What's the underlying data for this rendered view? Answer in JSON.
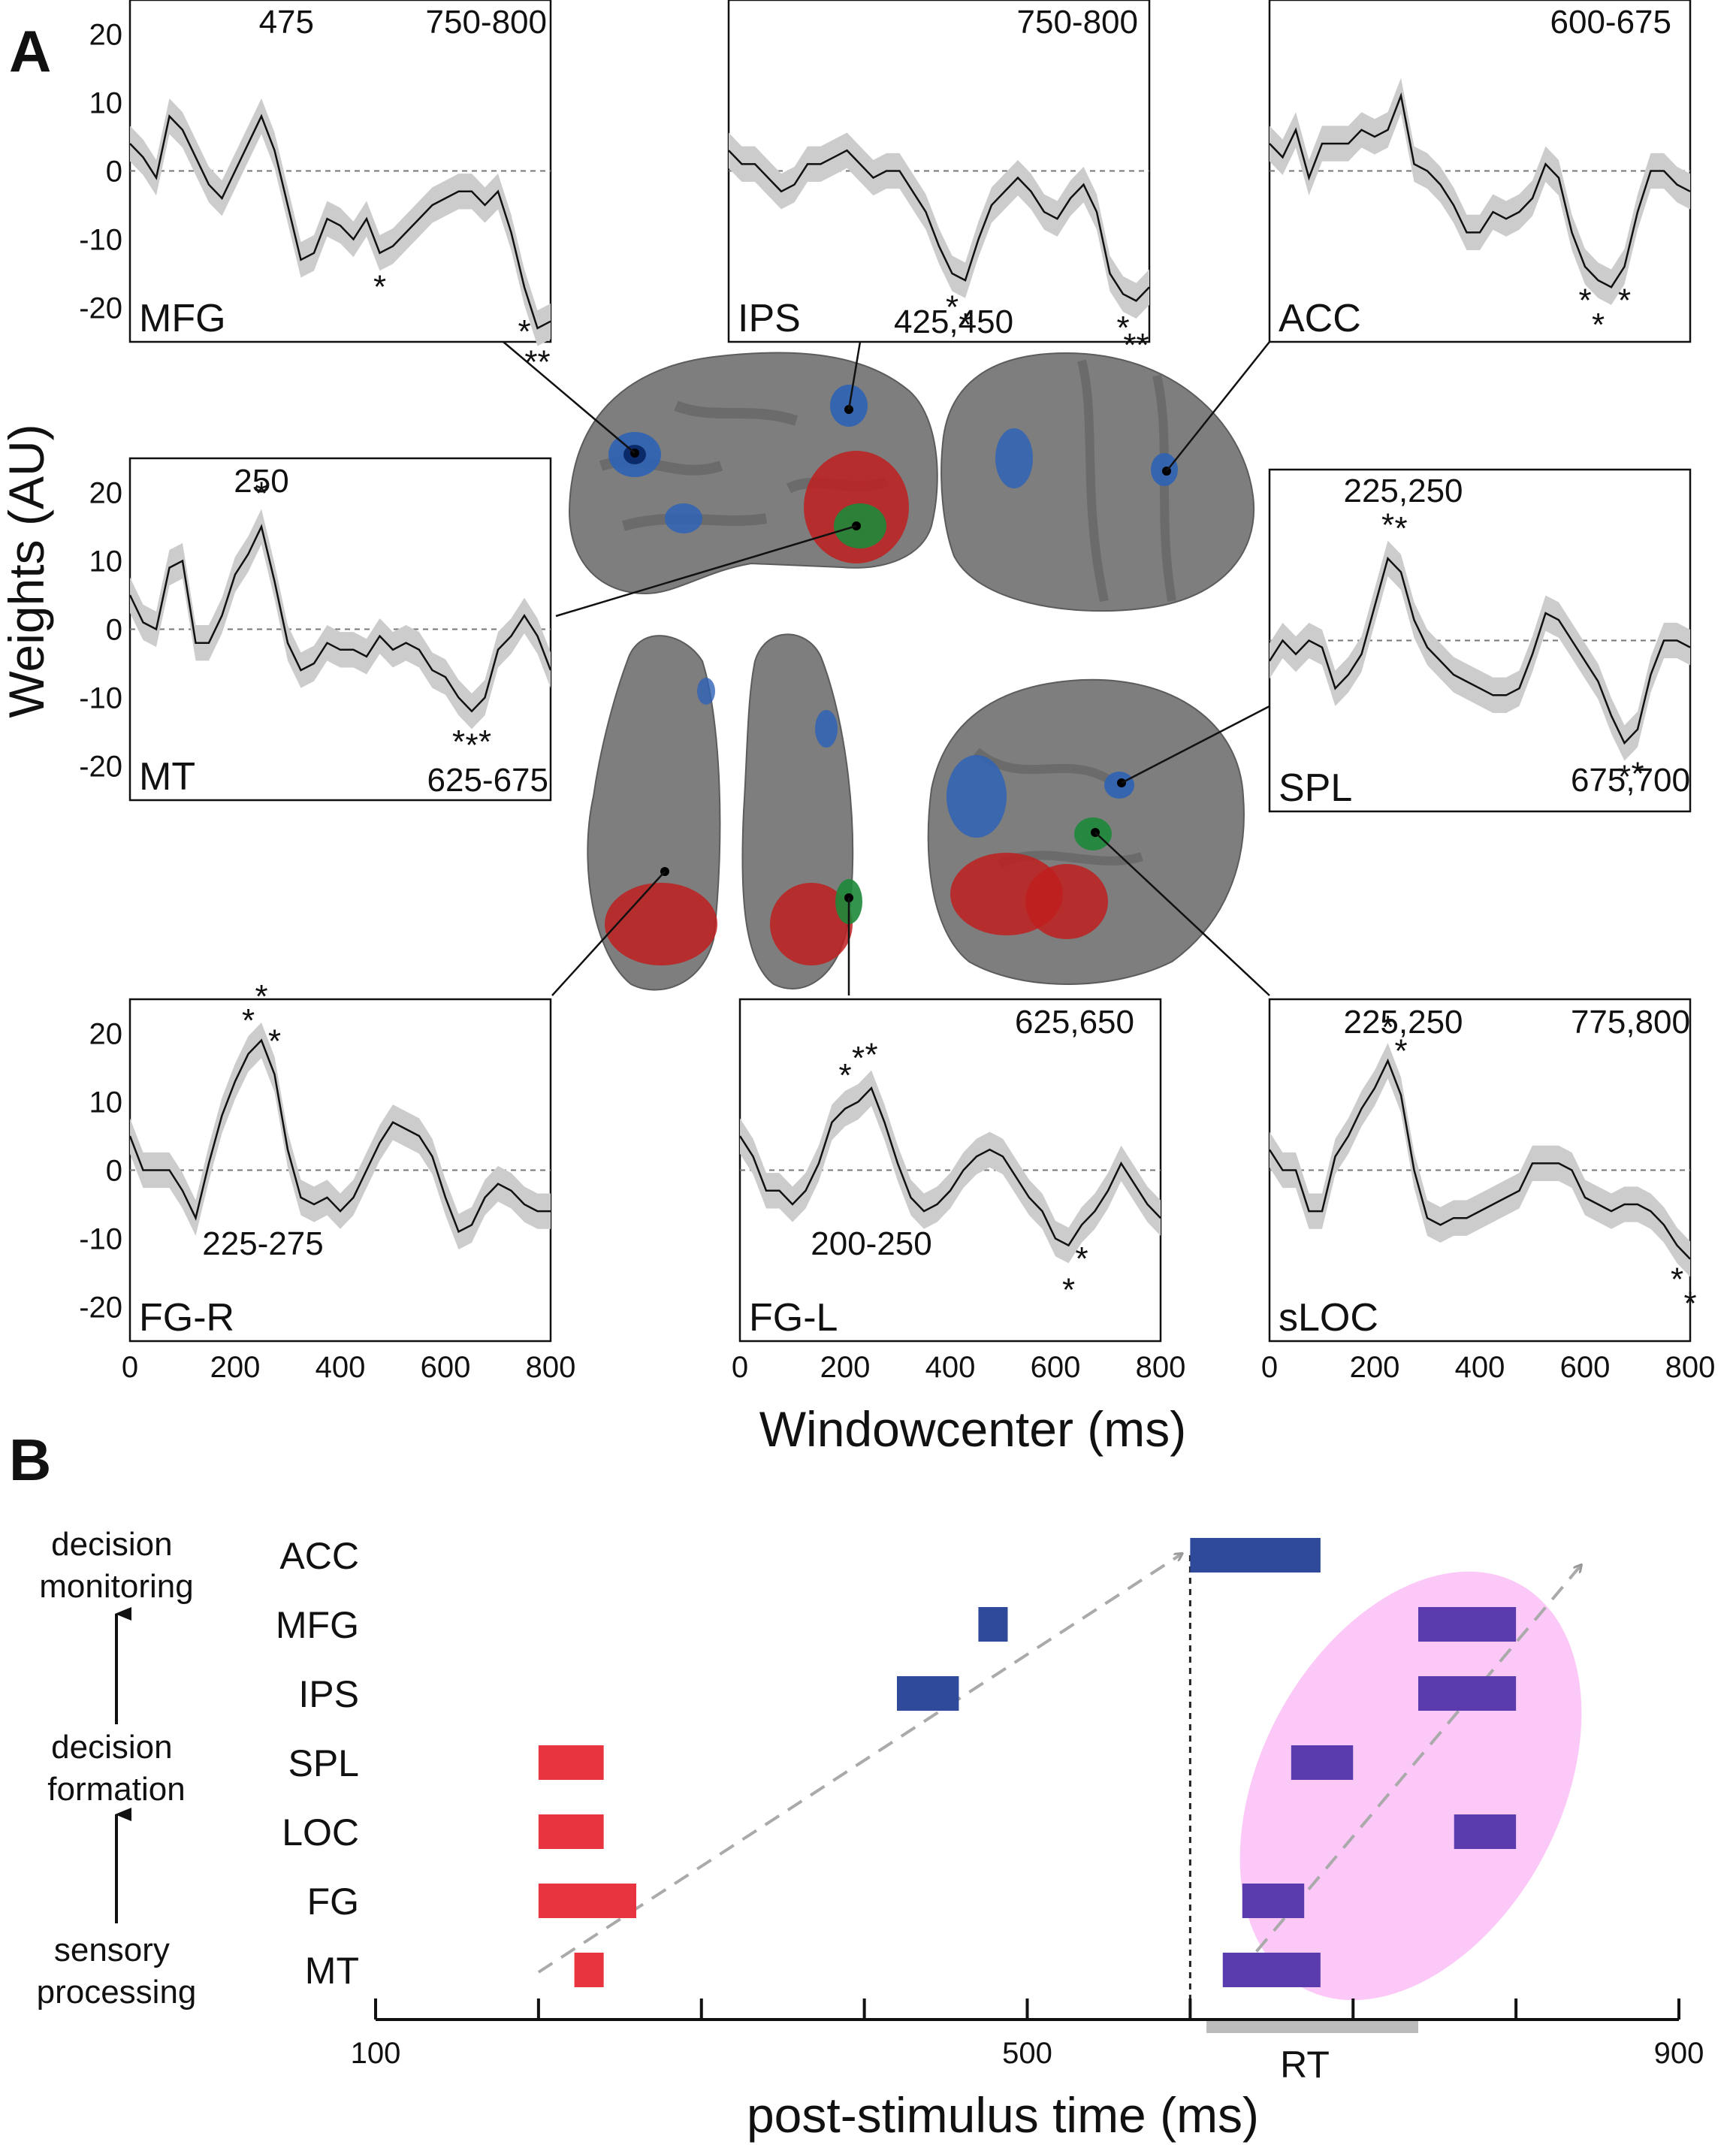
{
  "panel_a": {
    "letter": "A",
    "ylabel": "Weights (AU)",
    "xlabel": "Windowcenter (ms)",
    "x_ticks": [
      "0",
      "200",
      "400",
      "600",
      "800"
    ],
    "y_ticks": [
      "20",
      "10",
      "0",
      "-10",
      "-20"
    ]
  },
  "panel_b": {
    "letter": "B",
    "xlabel": "post-stimulus time (ms)",
    "x_ticks": [
      "100",
      "500",
      "900"
    ],
    "rt_label": "RT",
    "stage_labels": [
      "decision monitoring",
      "decision formation",
      "sensory processing"
    ]
  },
  "colors": {
    "early": "#e8343e",
    "decision_blue": "#2f4a9a",
    "late_purple": "#5a3cae",
    "ellipse": "#fbc8f7",
    "ribbon": "#cccccc",
    "rt_bar": "#bbbbbb",
    "arrow": "#aaaaaa"
  },
  "chart_data": [
    {
      "type": "line",
      "region": "MFG",
      "xlim": [
        0,
        800
      ],
      "ylim": [
        -25,
        25
      ],
      "annotations": [
        "475",
        "750-800"
      ],
      "x": [
        0,
        25,
        50,
        75,
        100,
        125,
        150,
        175,
        200,
        225,
        250,
        275,
        300,
        325,
        350,
        375,
        400,
        425,
        450,
        475,
        500,
        525,
        550,
        575,
        600,
        625,
        650,
        675,
        700,
        725,
        750,
        775,
        800
      ],
      "y": [
        4,
        2,
        -1,
        8,
        6,
        2,
        -2,
        -4,
        0,
        4,
        8,
        3,
        -5,
        -13,
        -12,
        -7,
        -8,
        -10,
        -7,
        -12,
        -11,
        -9,
        -7,
        -5,
        -4,
        -3,
        -3,
        -5,
        -3,
        -9,
        -17,
        -23,
        -22
      ],
      "stars": [
        {
          "x": 475,
          "text": "*"
        },
        {
          "x": 750,
          "text": "*"
        },
        {
          "x": 775,
          "text": "**"
        }
      ]
    },
    {
      "type": "line",
      "region": "IPS",
      "xlim": [
        0,
        800
      ],
      "ylim": [
        -25,
        25
      ],
      "annotations": [
        "750-800",
        "425,450"
      ],
      "x": [
        0,
        25,
        50,
        75,
        100,
        125,
        150,
        175,
        200,
        225,
        250,
        275,
        300,
        325,
        350,
        375,
        400,
        425,
        450,
        475,
        500,
        525,
        550,
        575,
        600,
        625,
        650,
        675,
        700,
        725,
        750,
        775,
        800
      ],
      "y": [
        3,
        1,
        1,
        -1,
        -3,
        -2,
        1,
        1,
        2,
        3,
        1,
        -1,
        0,
        0,
        -3,
        -6,
        -11,
        -15,
        -16,
        -10,
        -5,
        -3,
        -1,
        -3,
        -6,
        -7,
        -4,
        -2,
        -6,
        -15,
        -18,
        -19,
        -17
      ],
      "stars": [
        {
          "x": 425,
          "text": "*"
        },
        {
          "x": 450,
          "text": "*"
        },
        {
          "x": 750,
          "text": "*"
        },
        {
          "x": 775,
          "text": "**"
        }
      ]
    },
    {
      "type": "line",
      "region": "ACC",
      "xlim": [
        0,
        800
      ],
      "ylim": [
        -25,
        25
      ],
      "annotations": [
        "600-675"
      ],
      "x": [
        0,
        25,
        50,
        75,
        100,
        125,
        150,
        175,
        200,
        225,
        250,
        275,
        300,
        325,
        350,
        375,
        400,
        425,
        450,
        475,
        500,
        525,
        550,
        575,
        600,
        625,
        650,
        675,
        700,
        725,
        750,
        775,
        800
      ],
      "y": [
        4,
        2,
        6,
        -1,
        4,
        4,
        4,
        6,
        5,
        6,
        11,
        1,
        0,
        -2,
        -5,
        -9,
        -9,
        -6,
        -7,
        -6,
        -4,
        1,
        -1,
        -9,
        -14,
        -16,
        -17,
        -14,
        -6,
        0,
        0,
        -2,
        -3
      ],
      "stars": [
        {
          "x": 600,
          "text": "*"
        },
        {
          "x": 625,
          "text": "*"
        },
        {
          "x": 675,
          "text": "*"
        }
      ]
    },
    {
      "type": "line",
      "region": "MT",
      "xlim": [
        0,
        800
      ],
      "ylim": [
        -25,
        25
      ],
      "annotations": [
        "250",
        "625-675"
      ],
      "x": [
        0,
        25,
        50,
        75,
        100,
        125,
        150,
        175,
        200,
        225,
        250,
        275,
        300,
        325,
        350,
        375,
        400,
        425,
        450,
        475,
        500,
        525,
        550,
        575,
        600,
        625,
        650,
        675,
        700,
        725,
        750,
        775,
        800
      ],
      "y": [
        5,
        1,
        0,
        9,
        10,
        -2,
        -2,
        2,
        8,
        11,
        15,
        7,
        -2,
        -6,
        -5,
        -2,
        -3,
        -3,
        -4,
        -1,
        -3,
        -2,
        -3,
        -6,
        -7,
        -10,
        -12,
        -10,
        -3,
        -1,
        2,
        -1,
        -6
      ],
      "stars": [
        {
          "x": 250,
          "text": "*"
        },
        {
          "x": 625,
          "text": "*"
        },
        {
          "x": 650,
          "text": "*"
        },
        {
          "x": 675,
          "text": "*"
        }
      ]
    },
    {
      "type": "line",
      "region": "SPL",
      "xlim": [
        0,
        800
      ],
      "ylim": [
        -25,
        25
      ],
      "annotations": [
        "225,250",
        "675,700"
      ],
      "x": [
        0,
        25,
        50,
        75,
        100,
        125,
        150,
        175,
        200,
        225,
        250,
        275,
        300,
        325,
        350,
        375,
        400,
        425,
        450,
        475,
        500,
        525,
        550,
        575,
        600,
        625,
        650,
        675,
        700,
        725,
        750,
        775,
        800
      ],
      "y": [
        -3,
        0,
        -2,
        0,
        -1,
        -7,
        -5,
        -2,
        5,
        12,
        10,
        3,
        -1,
        -3,
        -5,
        -6,
        -7,
        -8,
        -8,
        -7,
        -2,
        4,
        3,
        0,
        -3,
        -6,
        -11,
        -15,
        -13,
        -5,
        0,
        0,
        -1
      ],
      "stars": [
        {
          "x": 225,
          "text": "*"
        },
        {
          "x": 250,
          "text": "*"
        },
        {
          "x": 675,
          "text": "*"
        },
        {
          "x": 700,
          "text": "*"
        }
      ]
    },
    {
      "type": "line",
      "region": "FG-R",
      "xlim": [
        0,
        800
      ],
      "ylim": [
        -25,
        25
      ],
      "annotations": [
        "225-275"
      ],
      "x": [
        0,
        25,
        50,
        75,
        100,
        125,
        150,
        175,
        200,
        225,
        250,
        275,
        300,
        325,
        350,
        375,
        400,
        425,
        450,
        475,
        500,
        525,
        550,
        575,
        600,
        625,
        650,
        675,
        700,
        725,
        750,
        775,
        800
      ],
      "y": [
        5,
        0,
        0,
        0,
        -3,
        -7,
        1,
        8,
        13,
        17,
        19,
        14,
        3,
        -4,
        -5,
        -4,
        -6,
        -4,
        0,
        4,
        7,
        6,
        5,
        2,
        -4,
        -9,
        -8,
        -4,
        -2,
        -3,
        -5,
        -6,
        -6
      ],
      "stars": [
        {
          "x": 225,
          "text": "*"
        },
        {
          "x": 250,
          "text": "*"
        },
        {
          "x": 275,
          "text": "*"
        }
      ]
    },
    {
      "type": "line",
      "region": "FG-L",
      "xlim": [
        0,
        800
      ],
      "ylim": [
        -25,
        25
      ],
      "annotations": [
        "625,650",
        "200-250"
      ],
      "x": [
        0,
        25,
        50,
        75,
        100,
        125,
        150,
        175,
        200,
        225,
        250,
        275,
        300,
        325,
        350,
        375,
        400,
        425,
        450,
        475,
        500,
        525,
        550,
        575,
        600,
        625,
        650,
        675,
        700,
        725,
        750,
        775,
        800
      ],
      "y": [
        5,
        2,
        -3,
        -3,
        -5,
        -3,
        1,
        7,
        9,
        10,
        12,
        7,
        1,
        -4,
        -6,
        -5,
        -3,
        0,
        2,
        3,
        2,
        -1,
        -4,
        -6,
        -10,
        -11,
        -8,
        -6,
        -3,
        1,
        -2,
        -5,
        -7
      ],
      "stars": [
        {
          "x": 200,
          "text": "*"
        },
        {
          "x": 225,
          "text": "*"
        },
        {
          "x": 250,
          "text": "*"
        },
        {
          "x": 625,
          "text": "*"
        },
        {
          "x": 650,
          "text": "*"
        }
      ]
    },
    {
      "type": "line",
      "region": "sLOC",
      "xlim": [
        0,
        800
      ],
      "ylim": [
        -25,
        25
      ],
      "annotations": [
        "225,250",
        "775,800"
      ],
      "x": [
        0,
        25,
        50,
        75,
        100,
        125,
        150,
        175,
        200,
        225,
        250,
        275,
        300,
        325,
        350,
        375,
        400,
        425,
        450,
        475,
        500,
        525,
        550,
        575,
        600,
        625,
        650,
        675,
        700,
        725,
        750,
        775,
        800
      ],
      "y": [
        3,
        0,
        0,
        -6,
        -6,
        2,
        5,
        9,
        12,
        16,
        11,
        0,
        -7,
        -8,
        -7,
        -7,
        -6,
        -5,
        -4,
        -3,
        1,
        1,
        1,
        0,
        -4,
        -5,
        -6,
        -5,
        -5,
        -6,
        -8,
        -11,
        -13
      ],
      "stars": [
        {
          "x": 225,
          "text": "*"
        },
        {
          "x": 250,
          "text": "*"
        },
        {
          "x": 775,
          "text": "*"
        },
        {
          "x": 800,
          "text": "*"
        }
      ]
    },
    {
      "type": "bar",
      "title": "",
      "xlabel": "post-stimulus time (ms)",
      "xlim": [
        100,
        900
      ],
      "categories": [
        "ACC",
        "MFG",
        "IPS",
        "SPL",
        "LOC",
        "FG",
        "MT"
      ],
      "rt_range": [
        610,
        740
      ],
      "vertical_line": 600,
      "early_bars": [
        {
          "label": "SPL",
          "start": 200,
          "end": 240
        },
        {
          "label": "LOC",
          "start": 200,
          "end": 240
        },
        {
          "label": "FG",
          "start": 200,
          "end": 260
        },
        {
          "label": "MT",
          "start": 222,
          "end": 240
        }
      ],
      "decision_bars": [
        {
          "label": "ACC",
          "start": 600,
          "end": 680
        },
        {
          "label": "MFG",
          "start": 470,
          "end": 488
        },
        {
          "label": "IPS",
          "start": 420,
          "end": 458
        }
      ],
      "late_bars": [
        {
          "label": "MFG",
          "start": 740,
          "end": 800
        },
        {
          "label": "IPS",
          "start": 740,
          "end": 800
        },
        {
          "label": "SPL",
          "start": 662,
          "end": 700
        },
        {
          "label": "LOC",
          "start": 762,
          "end": 800
        },
        {
          "label": "FG",
          "start": 632,
          "end": 670
        },
        {
          "label": "MT",
          "start": 620,
          "end": 680
        }
      ]
    }
  ]
}
